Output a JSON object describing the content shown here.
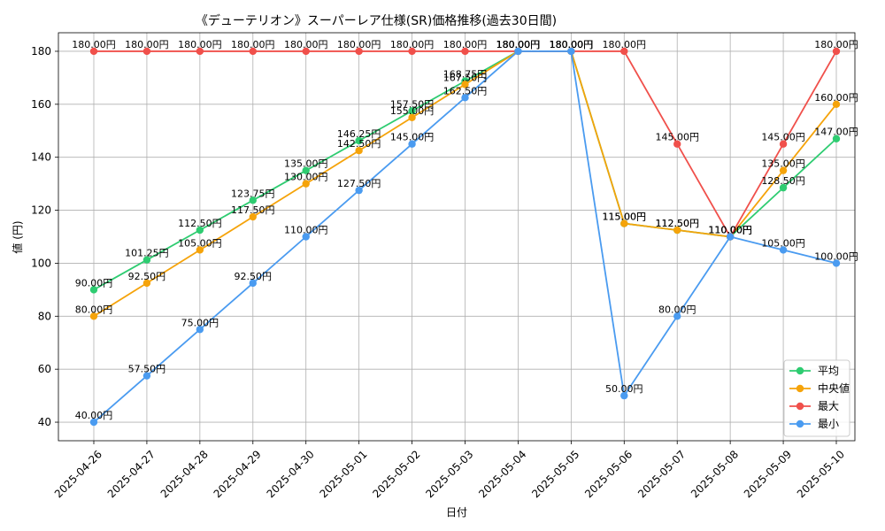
{
  "chart_data": {
    "type": "line",
    "title": "《デューテリオン》スーパーレア仕様(SR)価格推移(過去30日間)",
    "xlabel": "日付",
    "ylabel": "値 (円)",
    "ylim": [
      33,
      187
    ],
    "yticks": [
      40,
      60,
      80,
      100,
      120,
      140,
      160,
      180
    ],
    "grid": true,
    "legend_position": "lower-right",
    "value_suffix": "円",
    "categories": [
      "2025-04-26",
      "2025-04-27",
      "2025-04-28",
      "2025-04-29",
      "2025-04-30",
      "2025-05-01",
      "2025-05-02",
      "2025-05-03",
      "2025-05-04",
      "2025-05-05",
      "2025-05-06",
      "2025-05-07",
      "2025-05-08",
      "2025-05-09",
      "2025-05-10"
    ],
    "series": [
      {
        "name": "平均",
        "color": "#2ecc71",
        "values": [
          90.0,
          101.25,
          112.5,
          123.75,
          135.0,
          146.25,
          157.5,
          168.75,
          180.0,
          180.0,
          115.0,
          112.5,
          110.0,
          128.5,
          147.0
        ]
      },
      {
        "name": "中央値",
        "color": "#f5a30a",
        "values": [
          80.0,
          92.5,
          105.0,
          117.5,
          130.0,
          142.5,
          155.0,
          167.5,
          180.0,
          180.0,
          115.0,
          112.5,
          110.0,
          135.0,
          160.0
        ]
      },
      {
        "name": "最大",
        "color": "#f0504b",
        "values": [
          180.0,
          180.0,
          180.0,
          180.0,
          180.0,
          180.0,
          180.0,
          180.0,
          180.0,
          180.0,
          180.0,
          145.0,
          110.0,
          145.0,
          180.0
        ]
      },
      {
        "name": "最小",
        "color": "#4a9bf0",
        "values": [
          40.0,
          57.5,
          75.0,
          92.5,
          110.0,
          127.5,
          145.0,
          162.5,
          180.0,
          180.0,
          50.0,
          80.0,
          110.0,
          105.0,
          100.0
        ]
      }
    ]
  }
}
